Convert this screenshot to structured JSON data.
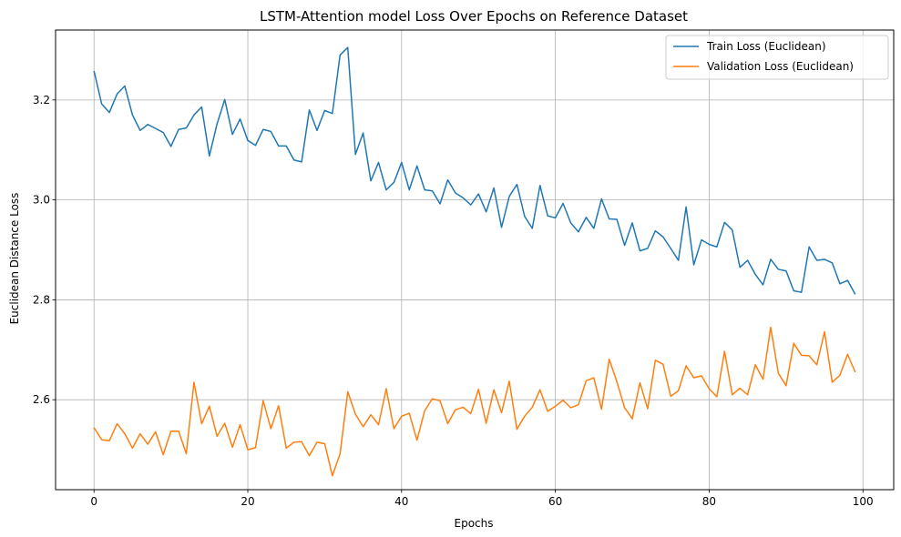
{
  "chart_data": {
    "type": "line",
    "title": "LSTM-Attention model Loss Over Epochs on Reference Dataset",
    "xlabel": "Epochs",
    "ylabel": "Euclidean Distance Loss",
    "xlim": [
      -5,
      104
    ],
    "ylim": [
      2.42,
      3.34
    ],
    "xticks": [
      0,
      20,
      40,
      60,
      80,
      100
    ],
    "yticks": [
      2.6,
      2.8,
      3.0,
      3.2
    ],
    "xtick_labels": [
      "0",
      "20",
      "40",
      "60",
      "80",
      "100"
    ],
    "ytick_labels": [
      "2.6",
      "2.8",
      "3.0",
      "3.2"
    ],
    "grid": true,
    "legend_position": "top-right",
    "x": [
      0,
      1,
      2,
      3,
      4,
      5,
      6,
      7,
      8,
      9,
      10,
      11,
      12,
      13,
      14,
      15,
      16,
      17,
      18,
      19,
      20,
      21,
      22,
      23,
      24,
      25,
      26,
      27,
      28,
      29,
      30,
      31,
      32,
      33,
      34,
      35,
      36,
      37,
      38,
      39,
      40,
      41,
      42,
      43,
      44,
      45,
      46,
      47,
      48,
      49,
      50,
      51,
      52,
      53,
      54,
      55,
      56,
      57,
      58,
      59,
      60,
      61,
      62,
      63,
      64,
      65,
      66,
      67,
      68,
      69,
      70,
      71,
      72,
      73,
      74,
      75,
      76,
      77,
      78,
      79,
      80,
      81,
      82,
      83,
      84,
      85,
      86,
      87,
      88,
      89,
      90,
      91,
      92,
      93,
      94,
      95,
      96,
      97,
      98,
      99
    ],
    "series": [
      {
        "name": "Train Loss (Euclidean)",
        "color": "#1f77b4",
        "values": [
          3.258,
          3.192,
          3.175,
          3.212,
          3.228,
          3.17,
          3.139,
          3.151,
          3.143,
          3.135,
          3.107,
          3.141,
          3.144,
          3.17,
          3.186,
          3.088,
          3.152,
          3.201,
          3.131,
          3.162,
          3.119,
          3.109,
          3.141,
          3.137,
          3.108,
          3.108,
          3.08,
          3.076,
          3.18,
          3.139,
          3.179,
          3.173,
          3.29,
          3.305,
          3.091,
          3.134,
          3.038,
          3.075,
          3.02,
          3.035,
          3.075,
          3.02,
          3.068,
          3.02,
          3.018,
          2.992,
          3.04,
          3.014,
          3.004,
          2.99,
          3.012,
          2.976,
          3.024,
          2.945,
          3.007,
          3.031,
          2.967,
          2.943,
          3.029,
          2.968,
          2.964,
          2.993,
          2.954,
          2.936,
          2.965,
          2.943,
          3.002,
          2.962,
          2.961,
          2.909,
          2.954,
          2.898,
          2.903,
          2.938,
          2.926,
          2.903,
          2.879,
          2.986,
          2.87,
          2.92,
          2.911,
          2.906,
          2.955,
          2.94,
          2.865,
          2.879,
          2.851,
          2.83,
          2.881,
          2.861,
          2.858,
          2.818,
          2.815,
          2.906,
          2.879,
          2.881,
          2.874,
          2.832,
          2.839,
          2.811
        ]
      },
      {
        "name": "Validation Loss (Euclidean)",
        "color": "#ff7f0e",
        "values": [
          2.544,
          2.52,
          2.518,
          2.552,
          2.532,
          2.503,
          2.532,
          2.511,
          2.536,
          2.49,
          2.537,
          2.537,
          2.492,
          2.635,
          2.552,
          2.587,
          2.527,
          2.553,
          2.505,
          2.55,
          2.5,
          2.504,
          2.598,
          2.542,
          2.588,
          2.503,
          2.515,
          2.516,
          2.488,
          2.515,
          2.512,
          2.448,
          2.492,
          2.616,
          2.571,
          2.546,
          2.57,
          2.55,
          2.622,
          2.542,
          2.567,
          2.573,
          2.519,
          2.578,
          2.602,
          2.598,
          2.552,
          2.58,
          2.585,
          2.572,
          2.621,
          2.553,
          2.62,
          2.574,
          2.637,
          2.541,
          2.567,
          2.585,
          2.62,
          2.577,
          2.587,
          2.599,
          2.584,
          2.59,
          2.638,
          2.644,
          2.581,
          2.681,
          2.636,
          2.584,
          2.562,
          2.634,
          2.582,
          2.679,
          2.671,
          2.607,
          2.618,
          2.668,
          2.644,
          2.648,
          2.622,
          2.606,
          2.697,
          2.61,
          2.623,
          2.61,
          2.67,
          2.641,
          2.745,
          2.653,
          2.628,
          2.713,
          2.689,
          2.688,
          2.67,
          2.736,
          2.635,
          2.649,
          2.691,
          2.655
        ]
      }
    ]
  }
}
